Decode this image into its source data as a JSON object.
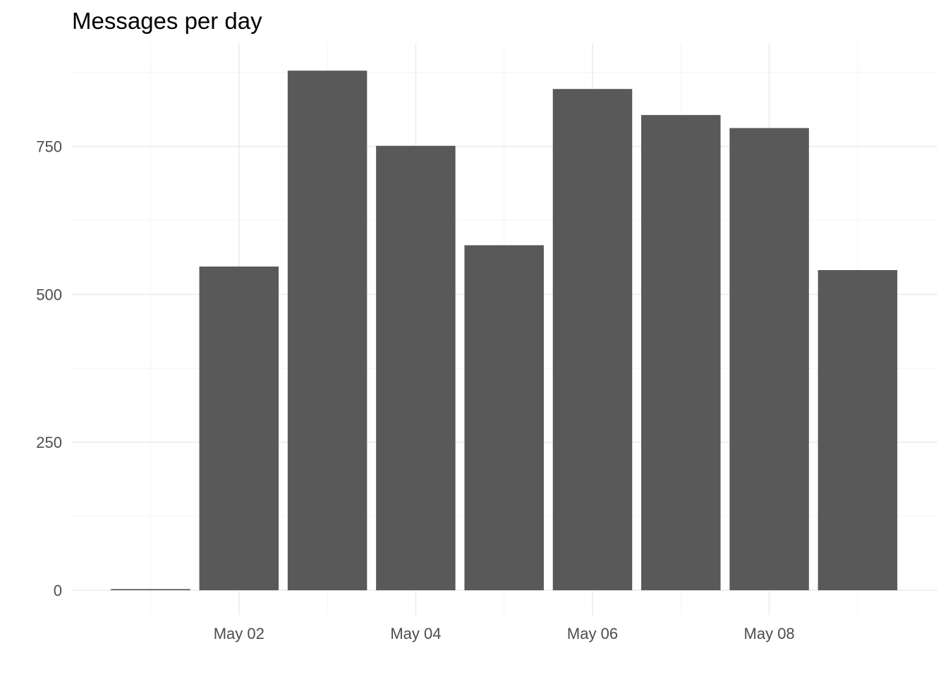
{
  "chart_data": {
    "type": "bar",
    "title": "Messages per day",
    "xlabel": "",
    "ylabel": "",
    "x": [
      "2020-05-01",
      "2020-05-02",
      "2020-05-03",
      "2020-05-04",
      "2020-05-05",
      "2020-05-06",
      "2020-05-07",
      "2020-05-08",
      "2020-05-09"
    ],
    "values": [
      2,
      547,
      878,
      751,
      583,
      847,
      803,
      781,
      541
    ],
    "x_ticks": [
      {
        "date": "2020-05-02",
        "label": "May 02"
      },
      {
        "date": "2020-05-04",
        "label": "May 04"
      },
      {
        "date": "2020-05-06",
        "label": "May 06"
      },
      {
        "date": "2020-05-08",
        "label": "May 08"
      }
    ],
    "y_ticks": [
      0,
      250,
      500,
      750
    ],
    "ylim": [
      0,
      878
    ],
    "grid": true,
    "legend": "none",
    "colors": {
      "bar": "#595959",
      "grid_major": "#ebebeb",
      "grid_minor": "#f4f4f4",
      "text": "#4d4d4d",
      "title": "#000000"
    }
  }
}
